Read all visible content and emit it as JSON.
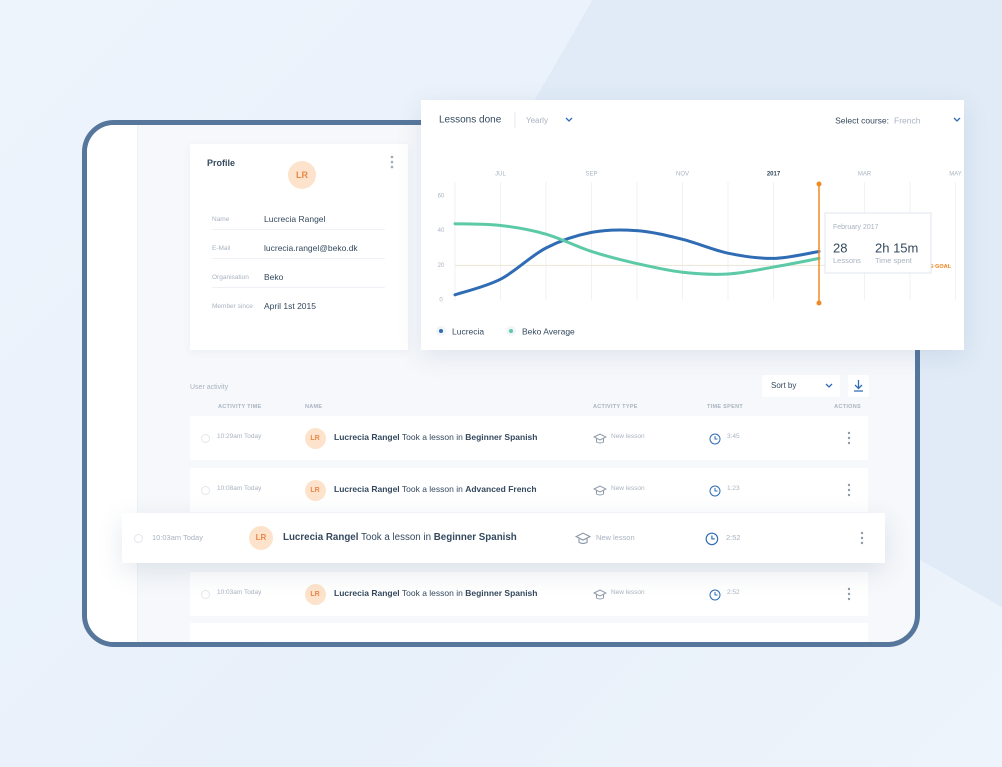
{
  "profile": {
    "title": "Profile",
    "initials": "LR",
    "fields": [
      {
        "label": "Name",
        "value": "Lucrecia Rangel"
      },
      {
        "label": "E-Mail",
        "value": "lucrecia.rangel@beko.dk"
      },
      {
        "label": "Organisation",
        "value": "Beko"
      },
      {
        "label": "Member since",
        "value": "April 1st 2015"
      }
    ]
  },
  "chart_data": {
    "type": "line",
    "title": "Lessons done",
    "period": "Yearly",
    "course_label": "Select course:",
    "course": "French",
    "categories": [
      null,
      "JUL",
      null,
      "SEP",
      null,
      "NOV",
      null,
      "2017",
      null,
      "MAR",
      null,
      "MAY"
    ],
    "series": [
      {
        "name": "Lucrecia",
        "color": "#2f6cb3",
        "values": [
          3,
          12,
          30,
          39,
          40,
          35,
          27,
          24,
          28,
          null,
          null,
          null
        ]
      },
      {
        "name": "Beko Average",
        "color": "#5cc9a7",
        "values": [
          44,
          43,
          38,
          28,
          21,
          16,
          15,
          19,
          24,
          null,
          null,
          null
        ]
      }
    ],
    "ylim": [
      0,
      60
    ],
    "yticks": [
      0,
      20,
      40,
      60
    ],
    "grid": false,
    "goal": 20,
    "goal_label": "ORG GOAL",
    "tooltip": {
      "title": "February 2017",
      "lessons_label": "Lessons",
      "time": "2h 15m",
      "time_label": "Time spent"
    }
  },
  "activity": {
    "title": "User activity",
    "sort": "Sort by",
    "columns": [
      "ACTIVITY TIME",
      "NAME",
      "ACTIVITY TYPE",
      "TIME SPENT",
      "ACTIONS"
    ],
    "rows": [
      {
        "time": "10:29am Today",
        "initials": "LR",
        "user": "Lucrecia Rangel",
        "action": "Took a lesson in",
        "course": "Beginner Spanish",
        "type": "New lesson",
        "spent": "3:45"
      },
      {
        "time": "10:08am Today",
        "initials": "LR",
        "user": "Lucrecia Rangel",
        "action": "Took a lesson in",
        "course": "Advanced French",
        "type": "New lesson",
        "spent": "1:23"
      },
      {
        "time": "10:03am Today",
        "initials": "LR",
        "user": "Lucrecia Rangel",
        "action": "Took a lesson in",
        "course": "Beginner Spanish",
        "type": "New lesson",
        "spent": "2:52"
      },
      {
        "time": "10:03am Today",
        "initials": "LR",
        "user": "Lucrecia Rangel",
        "action": "Took a lesson in",
        "course": "Beginner Spanish",
        "type": "New lesson",
        "spent": "2:52"
      }
    ]
  }
}
